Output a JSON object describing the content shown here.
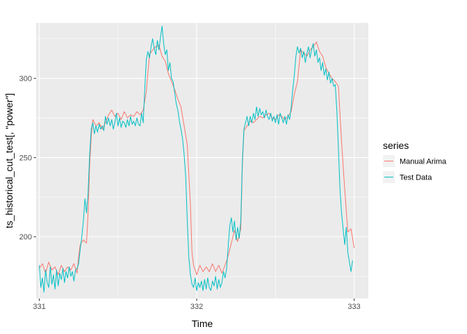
{
  "chart_data": {
    "type": "line",
    "xlabel": "Time",
    "ylabel": "ts_historical_cut_test[, \"power\"]",
    "xlim": [
      330.98,
      333.09
    ],
    "ylim": [
      161,
      335
    ],
    "x_ticks": [
      331,
      332,
      333
    ],
    "y_ticks": [
      200,
      250,
      300
    ],
    "grid": true,
    "legend": {
      "title": "series",
      "placement": "right"
    },
    "series": [
      {
        "name": "Manual Arima",
        "color": "#F8766D",
        "points": [
          [
            331.0,
            180
          ],
          [
            331.02,
            183
          ],
          [
            331.04,
            177
          ],
          [
            331.06,
            184
          ],
          [
            331.08,
            179
          ],
          [
            331.1,
            181
          ],
          [
            331.12,
            176
          ],
          [
            331.14,
            182
          ],
          [
            331.16,
            178
          ],
          [
            331.18,
            181
          ],
          [
            331.2,
            179
          ],
          [
            331.22,
            183
          ],
          [
            331.24,
            177
          ],
          [
            331.25,
            188
          ],
          [
            331.26,
            195
          ],
          [
            331.28,
            198
          ],
          [
            331.3,
            196
          ],
          [
            331.31,
            215
          ],
          [
            331.32,
            245
          ],
          [
            331.33,
            263
          ],
          [
            331.34,
            274
          ],
          [
            331.36,
            270
          ],
          [
            331.38,
            272
          ],
          [
            331.4,
            268
          ],
          [
            331.42,
            272
          ],
          [
            331.44,
            277
          ],
          [
            331.46,
            280
          ],
          [
            331.48,
            276
          ],
          [
            331.5,
            278
          ],
          [
            331.52,
            274
          ],
          [
            331.54,
            279
          ],
          [
            331.56,
            275
          ],
          [
            331.58,
            277
          ],
          [
            331.6,
            276
          ],
          [
            331.62,
            279
          ],
          [
            331.64,
            277
          ],
          [
            331.66,
            280
          ],
          [
            331.68,
            292
          ],
          [
            331.7,
            315
          ],
          [
            331.72,
            318
          ],
          [
            331.74,
            320
          ],
          [
            331.76,
            321
          ],
          [
            331.78,
            314
          ],
          [
            331.8,
            311
          ],
          [
            331.82,
            303
          ],
          [
            331.84,
            298
          ],
          [
            331.86,
            293
          ],
          [
            331.88,
            287
          ],
          [
            331.9,
            282
          ],
          [
            331.92,
            270
          ],
          [
            331.94,
            258
          ],
          [
            331.96,
            220
          ],
          [
            331.97,
            190
          ],
          [
            331.98,
            182
          ],
          [
            332.0,
            176
          ],
          [
            332.02,
            182
          ],
          [
            332.04,
            178
          ],
          [
            332.06,
            181
          ],
          [
            332.08,
            178
          ],
          [
            332.1,
            183
          ],
          [
            332.12,
            178
          ],
          [
            332.14,
            182
          ],
          [
            332.16,
            177
          ],
          [
            332.18,
            182
          ],
          [
            332.2,
            188
          ],
          [
            332.22,
            196
          ],
          [
            332.24,
            204
          ],
          [
            332.26,
            197
          ],
          [
            332.28,
            205
          ],
          [
            332.29,
            245
          ],
          [
            332.3,
            267
          ],
          [
            332.32,
            270
          ],
          [
            332.34,
            273
          ],
          [
            332.36,
            272
          ],
          [
            332.38,
            274
          ],
          [
            332.4,
            276
          ],
          [
            332.42,
            275
          ],
          [
            332.44,
            277
          ],
          [
            332.46,
            278
          ],
          [
            332.48,
            275
          ],
          [
            332.5,
            274
          ],
          [
            332.52,
            277
          ],
          [
            332.54,
            276
          ],
          [
            332.56,
            274
          ],
          [
            332.58,
            276
          ],
          [
            332.6,
            279
          ],
          [
            332.62,
            290
          ],
          [
            332.64,
            298
          ],
          [
            332.66,
            318
          ],
          [
            332.68,
            316
          ],
          [
            332.7,
            314
          ],
          [
            332.72,
            318
          ],
          [
            332.74,
            320
          ],
          [
            332.76,
            323
          ],
          [
            332.78,
            317
          ],
          [
            332.8,
            314
          ],
          [
            332.82,
            307
          ],
          [
            332.84,
            303
          ],
          [
            332.86,
            300
          ],
          [
            332.88,
            298
          ],
          [
            332.9,
            295
          ],
          [
            332.92,
            260
          ],
          [
            332.94,
            230
          ],
          [
            332.96,
            203
          ],
          [
            332.98,
            205
          ],
          [
            333.0,
            193
          ]
        ]
      },
      {
        "name": "Test Data",
        "color": "#00BFC4",
        "points": [
          [
            331.0,
            182
          ],
          [
            331.01,
            168
          ],
          [
            331.02,
            174
          ],
          [
            331.03,
            165
          ],
          [
            331.04,
            179
          ],
          [
            331.05,
            171
          ],
          [
            331.06,
            168
          ],
          [
            331.07,
            181
          ],
          [
            331.08,
            170
          ],
          [
            331.09,
            176
          ],
          [
            331.1,
            167
          ],
          [
            331.11,
            179
          ],
          [
            331.12,
            169
          ],
          [
            331.13,
            177
          ],
          [
            331.14,
            173
          ],
          [
            331.15,
            180
          ],
          [
            331.16,
            171
          ],
          [
            331.17,
            178
          ],
          [
            331.18,
            174
          ],
          [
            331.19,
            181
          ],
          [
            331.2,
            175
          ],
          [
            331.21,
            178
          ],
          [
            331.22,
            172
          ],
          [
            331.23,
            179
          ],
          [
            331.24,
            180
          ],
          [
            331.25,
            183
          ],
          [
            331.26,
            192
          ],
          [
            331.27,
            200
          ],
          [
            331.28,
            210
          ],
          [
            331.29,
            224
          ],
          [
            331.3,
            215
          ],
          [
            331.31,
            228
          ],
          [
            331.32,
            252
          ],
          [
            331.33,
            268
          ],
          [
            331.34,
            272
          ],
          [
            331.35,
            265
          ],
          [
            331.36,
            270
          ],
          [
            331.37,
            266
          ],
          [
            331.38,
            271
          ],
          [
            331.39,
            268
          ],
          [
            331.4,
            270
          ],
          [
            331.41,
            267
          ],
          [
            331.42,
            276
          ],
          [
            331.43,
            271
          ],
          [
            331.44,
            275
          ],
          [
            331.45,
            270
          ],
          [
            331.46,
            274
          ],
          [
            331.47,
            268
          ],
          [
            331.48,
            272
          ],
          [
            331.49,
            278
          ],
          [
            331.5,
            270
          ],
          [
            331.51,
            275
          ],
          [
            331.52,
            269
          ],
          [
            331.53,
            273
          ],
          [
            331.54,
            272
          ],
          [
            331.55,
            269
          ],
          [
            331.56,
            274
          ],
          [
            331.57,
            270
          ],
          [
            331.58,
            276
          ],
          [
            331.59,
            271
          ],
          [
            331.6,
            273
          ],
          [
            331.61,
            270
          ],
          [
            331.62,
            275
          ],
          [
            331.63,
            271
          ],
          [
            331.64,
            270
          ],
          [
            331.65,
            278
          ],
          [
            331.66,
            272
          ],
          [
            331.67,
            293
          ],
          [
            331.68,
            312
          ],
          [
            331.69,
            317
          ],
          [
            331.7,
            313
          ],
          [
            331.71,
            320
          ],
          [
            331.72,
            325
          ],
          [
            331.73,
            319
          ],
          [
            331.74,
            315
          ],
          [
            331.75,
            324
          ],
          [
            331.76,
            318
          ],
          [
            331.77,
            326
          ],
          [
            331.78,
            333
          ],
          [
            331.79,
            322
          ],
          [
            331.8,
            315
          ],
          [
            331.81,
            318
          ],
          [
            331.82,
            305
          ],
          [
            331.83,
            310
          ],
          [
            331.84,
            300
          ],
          [
            331.85,
            298
          ],
          [
            331.86,
            291
          ],
          [
            331.87,
            284
          ],
          [
            331.88,
            280
          ],
          [
            331.89,
            273
          ],
          [
            331.9,
            268
          ],
          [
            331.91,
            262
          ],
          [
            331.92,
            252
          ],
          [
            331.93,
            238
          ],
          [
            331.94,
            210
          ],
          [
            331.95,
            187
          ],
          [
            331.96,
            176
          ],
          [
            331.97,
            170
          ],
          [
            331.98,
            168
          ],
          [
            331.99,
            174
          ],
          [
            332.0,
            166
          ],
          [
            332.01,
            171
          ],
          [
            332.02,
            168
          ],
          [
            332.03,
            172
          ],
          [
            332.04,
            166
          ],
          [
            332.05,
            173
          ],
          [
            332.06,
            167
          ],
          [
            332.07,
            174
          ],
          [
            332.08,
            168
          ],
          [
            332.09,
            166
          ],
          [
            332.1,
            172
          ],
          [
            332.11,
            169
          ],
          [
            332.12,
            175
          ],
          [
            332.13,
            167
          ],
          [
            332.14,
            173
          ],
          [
            332.15,
            168
          ],
          [
            332.16,
            171
          ],
          [
            332.17,
            178
          ],
          [
            332.18,
            174
          ],
          [
            332.19,
            180
          ],
          [
            332.2,
            194
          ],
          [
            332.21,
            207
          ],
          [
            332.22,
            212
          ],
          [
            332.23,
            203
          ],
          [
            332.24,
            210
          ],
          [
            332.25,
            198
          ],
          [
            332.26,
            206
          ],
          [
            332.27,
            199
          ],
          [
            332.28,
            210
          ],
          [
            332.29,
            248
          ],
          [
            332.3,
            268
          ],
          [
            332.31,
            272
          ],
          [
            332.32,
            276
          ],
          [
            332.33,
            270
          ],
          [
            332.34,
            276
          ],
          [
            332.35,
            272
          ],
          [
            332.36,
            278
          ],
          [
            332.37,
            274
          ],
          [
            332.38,
            282
          ],
          [
            332.39,
            276
          ],
          [
            332.4,
            281
          ],
          [
            332.41,
            277
          ],
          [
            332.42,
            279
          ],
          [
            332.43,
            275
          ],
          [
            332.44,
            280
          ],
          [
            332.45,
            276
          ],
          [
            332.46,
            274
          ],
          [
            332.47,
            278
          ],
          [
            332.48,
            273
          ],
          [
            332.49,
            276
          ],
          [
            332.5,
            272
          ],
          [
            332.51,
            277
          ],
          [
            332.52,
            271
          ],
          [
            332.53,
            278
          ],
          [
            332.54,
            275
          ],
          [
            332.55,
            272
          ],
          [
            332.56,
            276
          ],
          [
            332.57,
            271
          ],
          [
            332.58,
            277
          ],
          [
            332.59,
            274
          ],
          [
            332.6,
            282
          ],
          [
            332.61,
            293
          ],
          [
            332.62,
            302
          ],
          [
            332.63,
            314
          ],
          [
            332.64,
            320
          ],
          [
            332.65,
            316
          ],
          [
            332.66,
            319
          ],
          [
            332.67,
            313
          ],
          [
            332.68,
            317
          ],
          [
            332.69,
            310
          ],
          [
            332.7,
            316
          ],
          [
            332.71,
            320
          ],
          [
            332.72,
            313
          ],
          [
            332.73,
            318
          ],
          [
            332.74,
            322
          ],
          [
            332.75,
            314
          ],
          [
            332.76,
            318
          ],
          [
            332.77,
            310
          ],
          [
            332.78,
            313
          ],
          [
            332.79,
            305
          ],
          [
            332.8,
            310
          ],
          [
            332.81,
            302
          ],
          [
            332.82,
            306
          ],
          [
            332.83,
            299
          ],
          [
            332.84,
            304
          ],
          [
            332.85,
            297
          ],
          [
            332.86,
            300
          ],
          [
            332.87,
            295
          ],
          [
            332.88,
            296
          ],
          [
            332.89,
            280
          ],
          [
            332.9,
            256
          ],
          [
            332.91,
            230
          ],
          [
            332.92,
            215
          ],
          [
            332.93,
            205
          ],
          [
            332.94,
            195
          ],
          [
            332.95,
            206
          ],
          [
            332.96,
            190
          ],
          [
            332.97,
            184
          ],
          [
            332.98,
            178
          ],
          [
            332.99,
            185
          ]
        ]
      }
    ]
  }
}
